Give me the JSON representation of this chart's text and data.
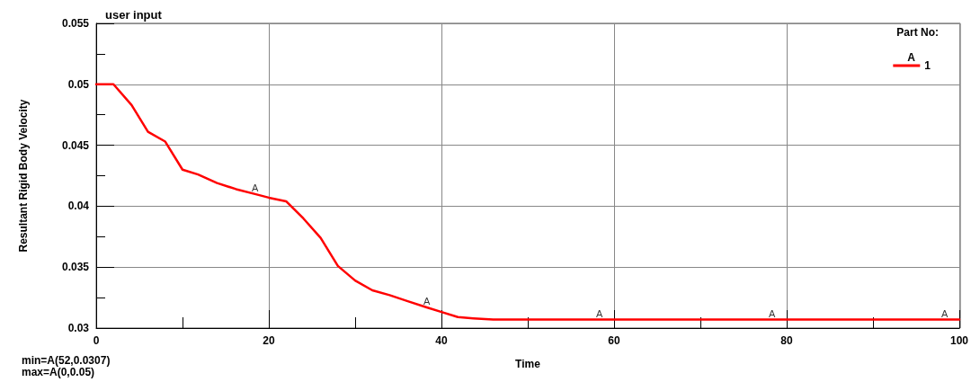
{
  "chart_data": {
    "type": "line",
    "title": "user input",
    "xlabel": "Time",
    "ylabel": "Resultant Rigid Body Velocity",
    "legend_title": "Part No:",
    "x": [
      0,
      2,
      4.1,
      6,
      8,
      10,
      11.8,
      14,
      16.2,
      18.4,
      20,
      22,
      24,
      26,
      28,
      30,
      32,
      34,
      36.1,
      38.3,
      40.1,
      41.9,
      43.7,
      46,
      52,
      60,
      80,
      100
    ],
    "series": [
      {
        "name": "1",
        "color": "#ff0000",
        "values": [
          0.05,
          0.05,
          0.0483,
          0.0461,
          0.0453,
          0.043,
          0.0426,
          0.0419,
          0.0414,
          0.041,
          0.0407,
          0.0404,
          0.039,
          0.0374,
          0.0351,
          0.0339,
          0.0331,
          0.0327,
          0.0322,
          0.0317,
          0.0313,
          0.0309,
          0.0308,
          0.0307,
          0.0307,
          0.0307,
          0.0307,
          0.0307
        ]
      }
    ],
    "xlim": [
      0,
      100
    ],
    "xticks": [
      0,
      20,
      40,
      60,
      80,
      100
    ],
    "ylim": [
      0.03,
      0.055
    ],
    "yticks": [
      0.03,
      0.035,
      0.04,
      0.045,
      0.05,
      0.055
    ],
    "grid": true,
    "legend": "top right",
    "marker": "none",
    "line_style": "solid",
    "annotations": [
      {
        "text": "A",
        "x": 18.4,
        "y": 0.041
      },
      {
        "text": "A",
        "x": 38.3,
        "y": 0.0317
      },
      {
        "text": "A",
        "x": 58.3,
        "y": 0.0307
      },
      {
        "text": "A",
        "x": 78.3,
        "y": 0.0307
      },
      {
        "text": "A",
        "x": 98.3,
        "y": 0.0307
      },
      "min=A(52,0.0307)",
      "max=A(0,0.05)"
    ]
  }
}
